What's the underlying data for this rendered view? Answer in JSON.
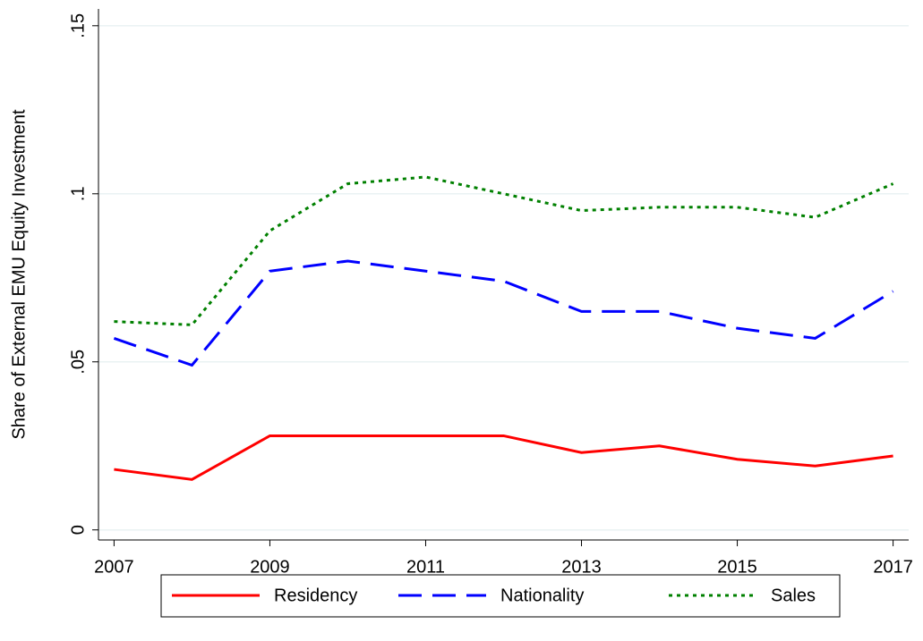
{
  "chart_data": {
    "type": "line",
    "y_label": "Share of External EMU Equity Investment",
    "x": [
      2007,
      2008,
      2009,
      2010,
      2011,
      2012,
      2013,
      2014,
      2015,
      2016,
      2017
    ],
    "xlim": [
      2006.8,
      2017.2
    ],
    "xticks": [
      2007,
      2009,
      2011,
      2013,
      2015,
      2017
    ],
    "ylim": [
      -0.003,
      0.155
    ],
    "yticks": [
      0,
      {
        "value": 0.05,
        "label": ".05"
      },
      {
        "value": 0.1,
        "label": ".1"
      },
      {
        "value": 0.15,
        "label": ".15"
      }
    ],
    "grid": true,
    "legend": "bottom",
    "series": [
      {
        "name": "Residency",
        "color": "#ff0000",
        "dash": "solid",
        "values": [
          0.018,
          0.015,
          0.028,
          0.028,
          0.028,
          0.028,
          0.023,
          0.025,
          0.021,
          0.019,
          0.022
        ]
      },
      {
        "name": "Nationality",
        "color": "#0000ff",
        "dash": "longdash",
        "values": [
          0.057,
          0.049,
          0.077,
          0.08,
          0.077,
          0.074,
          0.065,
          0.065,
          0.06,
          0.057,
          0.071
        ]
      },
      {
        "name": "Sales",
        "color": "#008000",
        "dash": "dot",
        "values": [
          0.062,
          0.061,
          0.089,
          0.103,
          0.105,
          0.1,
          0.095,
          0.096,
          0.096,
          0.093,
          0.103
        ]
      }
    ]
  }
}
